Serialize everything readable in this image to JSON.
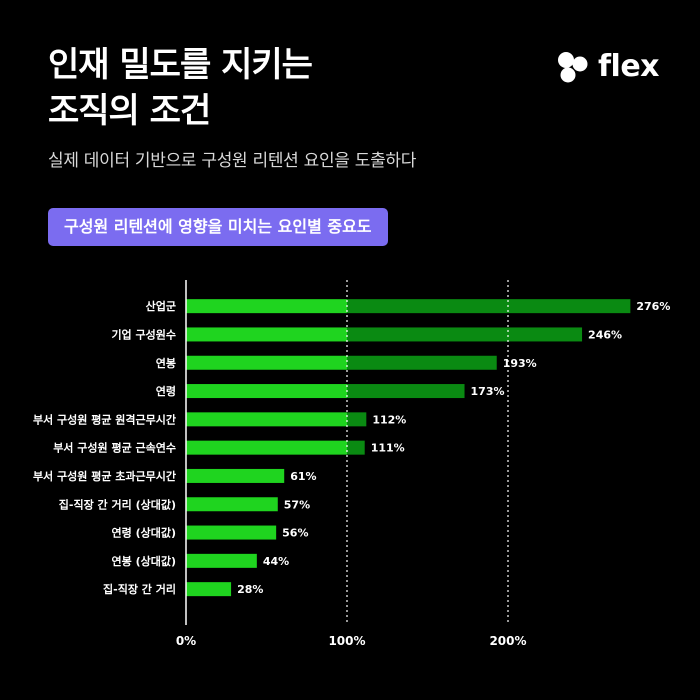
{
  "header": {
    "title_line1": "인재 밀도를 지키는",
    "title_line2": "조직의 조건",
    "subtitle": "실제 데이터 기반으로 구성원 리텐션 요인을 도출하다",
    "badge": "구성원 리텐션에 영향을 미치는 요인별 중요도"
  },
  "logo": {
    "text": "flex",
    "icon": "flex-logo-icon"
  },
  "colors": {
    "bar_bright": "#1fd41f",
    "bar_dark": "#0a8a12",
    "badge": "#7b6cf0",
    "background": "#000000"
  },
  "chart_data": {
    "type": "bar",
    "orientation": "horizontal",
    "categories": [
      "산업군",
      "기업 구성원수",
      "연봉",
      "연령",
      "부서 구성원 평균 원격근무시간",
      "부서 구성원 평균 근속연수",
      "부서 구성원 평균 초과근무시간",
      "집-직장 간 거리 (상대값)",
      "연령 (상대값)",
      "연봉 (상대값)",
      "집-직장 간 거리"
    ],
    "values": [
      276,
      246,
      193,
      173,
      112,
      111,
      61,
      57,
      56,
      44,
      28
    ],
    "value_labels": [
      "276%",
      "246%",
      "193%",
      "173%",
      "112%",
      "111%",
      "61%",
      "57%",
      "56%",
      "44%",
      "28%"
    ],
    "xlim": [
      0,
      280
    ],
    "xticks": [
      0,
      100,
      200
    ],
    "xtick_labels": [
      "0%",
      "100%",
      "200%"
    ],
    "reference_lines": [
      100,
      200
    ],
    "grid": false,
    "xlabel": "",
    "ylabel": ""
  }
}
